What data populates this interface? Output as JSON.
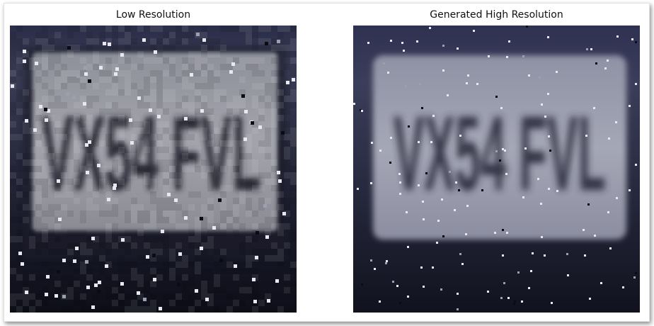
{
  "figure": {
    "panels": [
      {
        "title": "Low Resolution",
        "plate_text": "VX54 FVL"
      },
      {
        "title": "Generated High Resolution",
        "plate_text": "VX54 FVL"
      }
    ]
  }
}
